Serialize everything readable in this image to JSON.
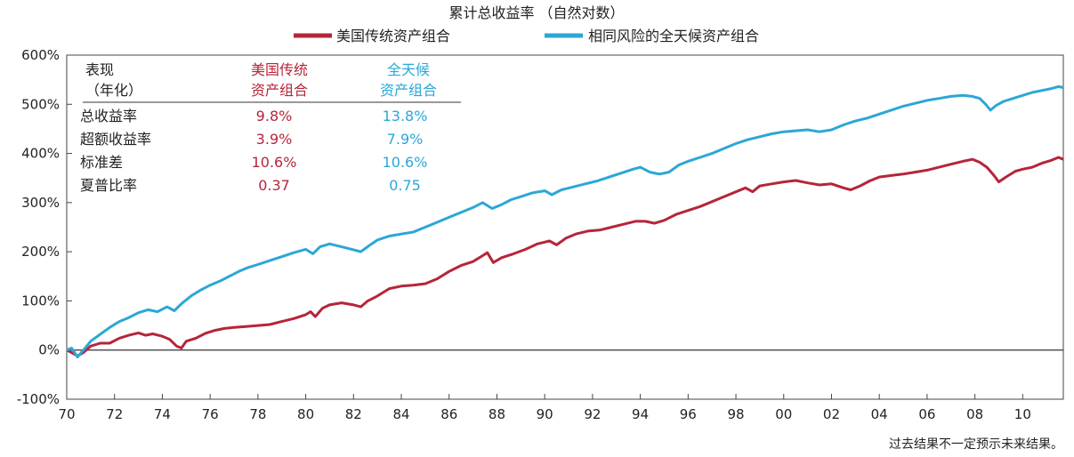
{
  "chart_data": {
    "type": "line",
    "title": "累计总收益率 （自然对数）",
    "x_tick_labels": [
      "70",
      "72",
      "74",
      "76",
      "78",
      "80",
      "82",
      "84",
      "86",
      "88",
      "90",
      "92",
      "94",
      "96",
      "98",
      "00",
      "02",
      "04",
      "06",
      "08",
      "10"
    ],
    "x_years": [
      1970,
      1972,
      1974,
      1976,
      1978,
      1980,
      1982,
      1984,
      1986,
      1988,
      1990,
      1992,
      1994,
      1996,
      1998,
      2000,
      2002,
      2004,
      2006,
      2008,
      2010
    ],
    "xlim": [
      1970,
      2011.7
    ],
    "y_tick_labels": [
      "-100%",
      "0%",
      "100%",
      "200%",
      "300%",
      "400%",
      "500%",
      "600%"
    ],
    "y_ticks": [
      -100,
      0,
      100,
      200,
      300,
      400,
      500,
      600
    ],
    "ylim": [
      -100,
      600
    ],
    "series": [
      {
        "name": "美国传统资产组合",
        "color": "#b5253a",
        "points": [
          [
            1970.0,
            0
          ],
          [
            1970.2,
            -5
          ],
          [
            1970.45,
            -12
          ],
          [
            1970.7,
            -5
          ],
          [
            1971.0,
            8
          ],
          [
            1971.4,
            14
          ],
          [
            1971.8,
            14
          ],
          [
            1972.2,
            24
          ],
          [
            1972.6,
            30
          ],
          [
            1973.0,
            35
          ],
          [
            1973.3,
            30
          ],
          [
            1973.6,
            33
          ],
          [
            1974.0,
            28
          ],
          [
            1974.3,
            22
          ],
          [
            1974.6,
            8
          ],
          [
            1974.8,
            4
          ],
          [
            1975.0,
            18
          ],
          [
            1975.4,
            24
          ],
          [
            1975.8,
            34
          ],
          [
            1976.2,
            40
          ],
          [
            1976.6,
            44
          ],
          [
            1977.0,
            46
          ],
          [
            1977.5,
            48
          ],
          [
            1978.0,
            50
          ],
          [
            1978.5,
            52
          ],
          [
            1979.0,
            58
          ],
          [
            1979.5,
            64
          ],
          [
            1980.0,
            72
          ],
          [
            1980.2,
            78
          ],
          [
            1980.4,
            68
          ],
          [
            1980.7,
            85
          ],
          [
            1981.0,
            92
          ],
          [
            1981.5,
            96
          ],
          [
            1982.0,
            92
          ],
          [
            1982.3,
            88
          ],
          [
            1982.6,
            100
          ],
          [
            1983.0,
            110
          ],
          [
            1983.5,
            125
          ],
          [
            1984.0,
            130
          ],
          [
            1984.5,
            132
          ],
          [
            1985.0,
            135
          ],
          [
            1985.5,
            145
          ],
          [
            1986.0,
            160
          ],
          [
            1986.5,
            172
          ],
          [
            1987.0,
            180
          ],
          [
            1987.4,
            192
          ],
          [
            1987.6,
            198
          ],
          [
            1987.85,
            178
          ],
          [
            1988.2,
            188
          ],
          [
            1988.7,
            196
          ],
          [
            1989.2,
            205
          ],
          [
            1989.7,
            216
          ],
          [
            1990.2,
            222
          ],
          [
            1990.5,
            214
          ],
          [
            1990.9,
            228
          ],
          [
            1991.3,
            236
          ],
          [
            1991.8,
            242
          ],
          [
            1992.3,
            244
          ],
          [
            1992.8,
            250
          ],
          [
            1993.3,
            256
          ],
          [
            1993.8,
            262
          ],
          [
            1994.2,
            262
          ],
          [
            1994.6,
            258
          ],
          [
            1995.0,
            264
          ],
          [
            1995.5,
            276
          ],
          [
            1996.0,
            284
          ],
          [
            1996.5,
            292
          ],
          [
            1997.0,
            302
          ],
          [
            1997.5,
            312
          ],
          [
            1997.9,
            320
          ],
          [
            1998.4,
            330
          ],
          [
            1998.7,
            322
          ],
          [
            1999.0,
            334
          ],
          [
            1999.5,
            338
          ],
          [
            2000.0,
            342
          ],
          [
            2000.5,
            345
          ],
          [
            2001.0,
            340
          ],
          [
            2001.5,
            336
          ],
          [
            2002.0,
            338
          ],
          [
            2002.5,
            330
          ],
          [
            2002.8,
            326
          ],
          [
            2003.2,
            334
          ],
          [
            2003.6,
            344
          ],
          [
            2004.0,
            352
          ],
          [
            2004.5,
            355
          ],
          [
            2005.0,
            358
          ],
          [
            2005.5,
            362
          ],
          [
            2006.0,
            366
          ],
          [
            2006.5,
            372
          ],
          [
            2007.0,
            378
          ],
          [
            2007.5,
            384
          ],
          [
            2007.9,
            388
          ],
          [
            2008.2,
            382
          ],
          [
            2008.5,
            372
          ],
          [
            2008.8,
            355
          ],
          [
            2009.0,
            342
          ],
          [
            2009.3,
            352
          ],
          [
            2009.7,
            364
          ],
          [
            2010.0,
            368
          ],
          [
            2010.4,
            372
          ],
          [
            2010.8,
            380
          ],
          [
            2011.2,
            386
          ],
          [
            2011.5,
            392
          ],
          [
            2011.7,
            388
          ]
        ]
      },
      {
        "name": "相同风险的全天候资产组合",
        "color": "#2ba7d6",
        "points": [
          [
            1970.0,
            0
          ],
          [
            1970.2,
            4
          ],
          [
            1970.45,
            -14
          ],
          [
            1970.7,
            0
          ],
          [
            1971.0,
            18
          ],
          [
            1971.4,
            32
          ],
          [
            1971.8,
            46
          ],
          [
            1972.2,
            58
          ],
          [
            1972.6,
            66
          ],
          [
            1973.0,
            76
          ],
          [
            1973.4,
            82
          ],
          [
            1973.8,
            78
          ],
          [
            1974.2,
            88
          ],
          [
            1974.5,
            80
          ],
          [
            1974.8,
            94
          ],
          [
            1975.2,
            110
          ],
          [
            1975.6,
            122
          ],
          [
            1976.0,
            132
          ],
          [
            1976.4,
            140
          ],
          [
            1976.8,
            150
          ],
          [
            1977.2,
            160
          ],
          [
            1977.6,
            168
          ],
          [
            1978.0,
            174
          ],
          [
            1978.5,
            182
          ],
          [
            1979.0,
            190
          ],
          [
            1979.5,
            198
          ],
          [
            1980.0,
            205
          ],
          [
            1980.3,
            196
          ],
          [
            1980.6,
            210
          ],
          [
            1981.0,
            216
          ],
          [
            1981.5,
            210
          ],
          [
            1982.0,
            204
          ],
          [
            1982.3,
            200
          ],
          [
            1982.7,
            214
          ],
          [
            1983.0,
            224
          ],
          [
            1983.5,
            232
          ],
          [
            1984.0,
            236
          ],
          [
            1984.5,
            240
          ],
          [
            1985.0,
            250
          ],
          [
            1985.5,
            260
          ],
          [
            1986.0,
            270
          ],
          [
            1986.5,
            280
          ],
          [
            1987.0,
            290
          ],
          [
            1987.4,
            300
          ],
          [
            1987.8,
            288
          ],
          [
            1988.2,
            296
          ],
          [
            1988.6,
            306
          ],
          [
            1989.0,
            312
          ],
          [
            1989.5,
            320
          ],
          [
            1990.0,
            324
          ],
          [
            1990.3,
            316
          ],
          [
            1990.7,
            326
          ],
          [
            1991.2,
            332
          ],
          [
            1991.7,
            338
          ],
          [
            1992.2,
            344
          ],
          [
            1992.7,
            352
          ],
          [
            1993.2,
            360
          ],
          [
            1993.7,
            368
          ],
          [
            1994.0,
            372
          ],
          [
            1994.4,
            362
          ],
          [
            1994.8,
            358
          ],
          [
            1995.2,
            362
          ],
          [
            1995.6,
            376
          ],
          [
            1996.0,
            384
          ],
          [
            1996.5,
            392
          ],
          [
            1997.0,
            400
          ],
          [
            1997.5,
            410
          ],
          [
            1998.0,
            420
          ],
          [
            1998.5,
            428
          ],
          [
            1999.0,
            434
          ],
          [
            1999.5,
            440
          ],
          [
            2000.0,
            444
          ],
          [
            2000.5,
            446
          ],
          [
            2001.0,
            448
          ],
          [
            2001.5,
            444
          ],
          [
            2002.0,
            448
          ],
          [
            2002.5,
            458
          ],
          [
            2003.0,
            466
          ],
          [
            2003.5,
            472
          ],
          [
            2004.0,
            480
          ],
          [
            2004.5,
            488
          ],
          [
            2005.0,
            496
          ],
          [
            2005.5,
            502
          ],
          [
            2006.0,
            508
          ],
          [
            2006.5,
            512
          ],
          [
            2007.0,
            516
          ],
          [
            2007.5,
            518
          ],
          [
            2007.9,
            516
          ],
          [
            2008.2,
            512
          ],
          [
            2008.45,
            500
          ],
          [
            2008.65,
            488
          ],
          [
            2008.9,
            498
          ],
          [
            2009.2,
            506
          ],
          [
            2009.6,
            512
          ],
          [
            2010.0,
            518
          ],
          [
            2010.4,
            524
          ],
          [
            2010.8,
            528
          ],
          [
            2011.2,
            532
          ],
          [
            2011.5,
            536
          ],
          [
            2011.7,
            534
          ]
        ]
      }
    ],
    "table": {
      "header_left": [
        "表现",
        "（年化）"
      ],
      "col1_header": [
        "美国传统",
        "资产组合"
      ],
      "col2_header": [
        "全天候",
        "资产组合"
      ],
      "rows": [
        {
          "label": "总收益率",
          "v1": "9.8%",
          "v2": "13.8%"
        },
        {
          "label": "超额收益率",
          "v1": "3.9%",
          "v2": "7.9%"
        },
        {
          "label": "标准差",
          "v1": "10.6%",
          "v2": "10.6%"
        },
        {
          "label": "夏普比率",
          "v1": "0.37",
          "v2": "0.75"
        }
      ]
    },
    "footnote": "过去结果不一定预示未来结果。",
    "legend_position": "top-center",
    "grid": false
  }
}
